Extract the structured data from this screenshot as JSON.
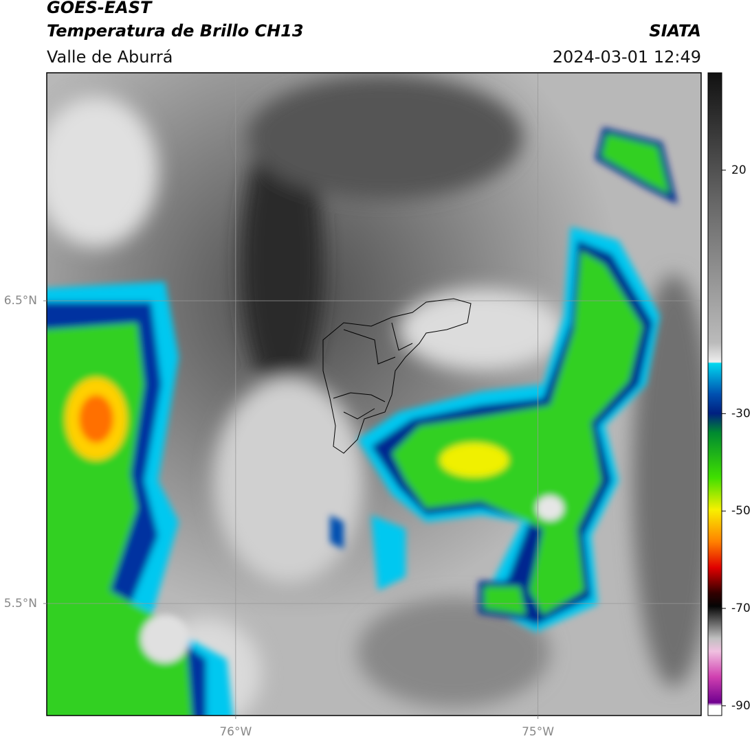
{
  "header": {
    "title": "GOES-EAST",
    "subtitle": "Temperatura de Brillo CH13",
    "region": "Valle de Aburrá",
    "source": "SIATA",
    "datetime": "2024-03-01 12:49"
  },
  "map": {
    "xlim": [
      -76.625,
      -74.46
    ],
    "ylim": [
      5.13,
      7.253
    ],
    "xticks": [
      {
        "value": -76,
        "label": "76°W"
      },
      {
        "value": -75,
        "label": "75°W"
      }
    ],
    "yticks": [
      {
        "value": 6.5,
        "label": "6.5°N"
      },
      {
        "value": 5.5,
        "label": "5.5°N"
      }
    ]
  },
  "colorbar": {
    "lim": [
      -92,
      40
    ],
    "ticks": [
      20,
      -30,
      -50,
      -70,
      -90
    ]
  }
}
